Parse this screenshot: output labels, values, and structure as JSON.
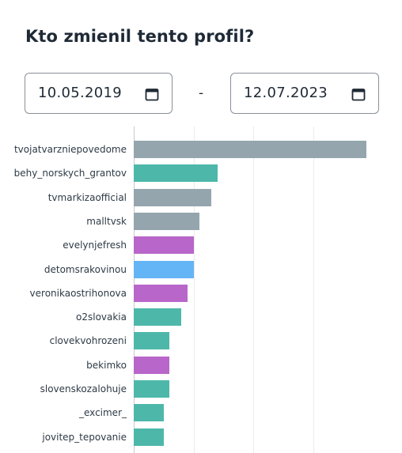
{
  "title": "Kto zmienil tento profil?",
  "date_from": {
    "value": "10.05.2019",
    "icon": "calendar-icon"
  },
  "separator": "-",
  "date_to": {
    "value": "12.07.2023",
    "icon": "calendar-icon"
  },
  "colors": {
    "gray": "#94a5ad",
    "teal": "#4db8a9",
    "purple": "#b866c9",
    "blue": "#64b5f6"
  },
  "chart_data": {
    "type": "bar",
    "orientation": "horizontal",
    "categories": [
      "tvojatvarzniepovedome",
      "behy_norskych_grantov",
      "tvmarkizaofficial",
      "malltvsk",
      "evelynjefresh",
      "detomsrakovinou",
      "veronikaostrihonova",
      "o2slovakia",
      "clovekvohrozeni",
      "bekimko",
      "slovenskozalohuje",
      "_excimer_",
      "jovitep_tepovanie"
    ],
    "values": [
      39,
      14,
      13,
      11,
      10,
      10,
      9,
      8,
      6,
      6,
      6,
      5,
      5
    ],
    "bar_colors": [
      "gray",
      "teal",
      "gray",
      "gray",
      "purple",
      "blue",
      "purple",
      "teal",
      "teal",
      "purple",
      "teal",
      "teal",
      "teal"
    ],
    "xlim": [
      0,
      40
    ],
    "grid": true
  }
}
